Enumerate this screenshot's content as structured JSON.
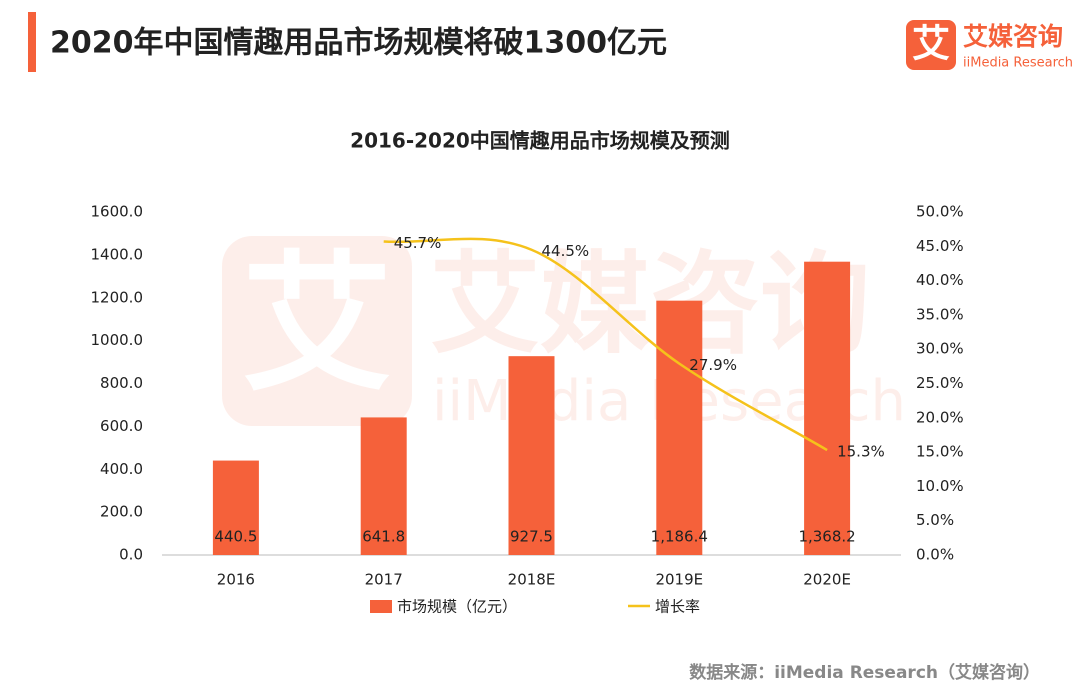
{
  "header": {
    "title": "2020年中国情趣用品市场规模将破1300亿元",
    "logo_icon": "艾",
    "logo_cn": "艾媒咨询",
    "logo_en": "iiMedia Research"
  },
  "chart_data": {
    "type": "bar",
    "title": "2016-2020中国情趣用品市场规模及预测",
    "categories": [
      "2016",
      "2017",
      "2018E",
      "2019E",
      "2020E"
    ],
    "series": [
      {
        "name": "市场规模（亿元）",
        "type": "bar",
        "color": "#f5613a",
        "values": [
          440.5,
          641.8,
          927.5,
          1186.4,
          1368.2
        ],
        "value_labels": [
          "440.5",
          "641.8",
          "927.5",
          "1,186.4",
          "1,368.2"
        ]
      },
      {
        "name": "增长率",
        "type": "line",
        "axis": "y2",
        "color": "#f5c21b",
        "values": [
          null,
          45.7,
          44.5,
          27.9,
          15.3
        ],
        "value_labels": [
          null,
          "45.7%",
          "44.5%",
          "27.9%",
          "15.3%"
        ]
      }
    ],
    "ylim": [
      0,
      1600
    ],
    "yticks": [
      {
        "value": 0,
        "label": "0.0"
      },
      {
        "value": 200,
        "label": "200.0"
      },
      {
        "value": 400,
        "label": "400.0"
      },
      {
        "value": 600,
        "label": "600.0"
      },
      {
        "value": 800,
        "label": "800.0"
      },
      {
        "value": 1000,
        "label": "1000.0"
      },
      {
        "value": 1200,
        "label": "1200.0"
      },
      {
        "value": 1400,
        "label": "1400.0"
      },
      {
        "value": 1600,
        "label": "1600.0"
      }
    ],
    "y2lim": [
      0,
      50
    ],
    "y2ticks": [
      {
        "value": 0,
        "label": "0.0%"
      },
      {
        "value": 5,
        "label": "5.0%"
      },
      {
        "value": 10,
        "label": "10.0%"
      },
      {
        "value": 15,
        "label": "15.0%"
      },
      {
        "value": 20,
        "label": "20.0%"
      },
      {
        "value": 25,
        "label": "25.0%"
      },
      {
        "value": 30,
        "label": "30.0%"
      },
      {
        "value": 35,
        "label": "35.0%"
      },
      {
        "value": 40,
        "label": "40.0%"
      },
      {
        "value": 45,
        "label": "45.0%"
      },
      {
        "value": 50,
        "label": "50.0%"
      }
    ],
    "grid": false,
    "legend": "bottom"
  },
  "source": "数据来源：iiMedia Research（艾媒咨询）"
}
